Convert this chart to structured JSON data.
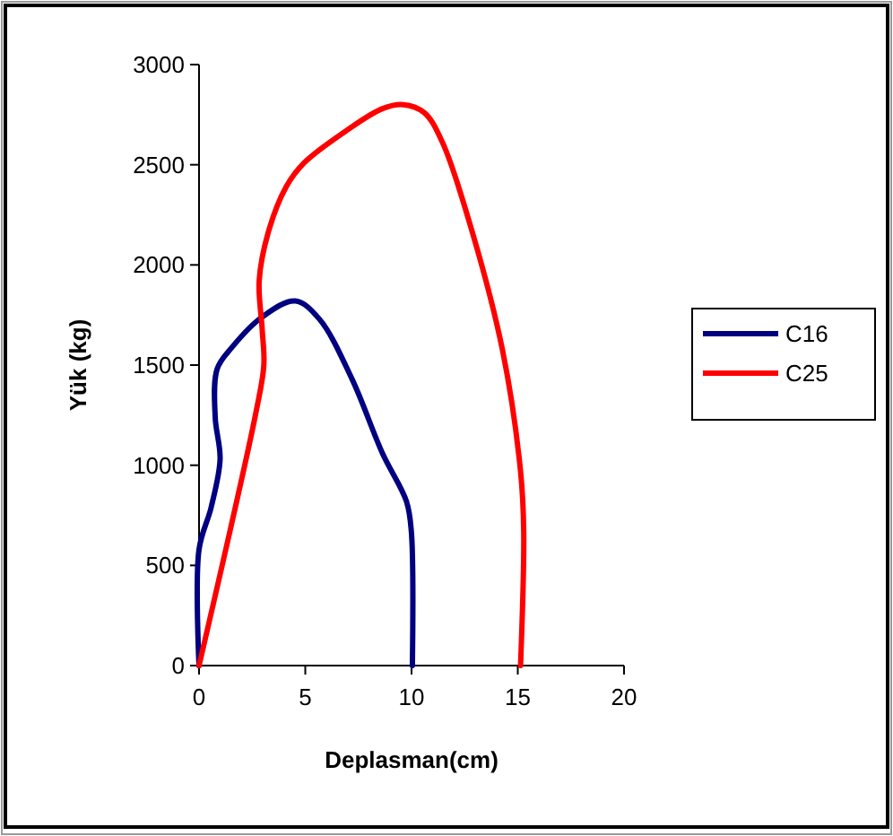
{
  "chart_data": {
    "type": "line",
    "xlabel": "Deplasman(cm)",
    "ylabel": "Yük (kg)",
    "xlim": [
      0,
      20
    ],
    "xticks": [
      0,
      5,
      10,
      15,
      20
    ],
    "ylim": [
      0,
      3000
    ],
    "yticks": [
      0,
      500,
      1000,
      1500,
      2000,
      2500,
      3000
    ],
    "grid": false,
    "legend": "right",
    "marker": "none",
    "line_style": "solid",
    "series": [
      {
        "name": "C16",
        "color": "#000080",
        "x": [
          0,
          0,
          0.57,
          0.99,
          0.76,
          0.85,
          1.56,
          2.97,
          4.53,
          5.66,
          7.2,
          8.63,
          9.76,
          9.99,
          10.04
        ],
        "values": [
          0,
          580,
          790,
          1030,
          1240,
          1480,
          1590,
          1740,
          1820,
          1730,
          1430,
          1060,
          820,
          670,
          0
        ]
      },
      {
        "name": "C25",
        "color": "#ff0000",
        "x": [
          0,
          2.69,
          3.05,
          2.97,
          2.83,
          3.25,
          4.1,
          4.95,
          6.93,
          8.63,
          9.62,
          10.6,
          11.46,
          12.87,
          14.29,
          15.13,
          15.28,
          15.13
        ],
        "values": [
          0,
          1270,
          1500,
          1680,
          1920,
          2160,
          2390,
          2510,
          2670,
          2780,
          2800,
          2760,
          2610,
          2160,
          1570,
          970,
          670,
          0
        ]
      }
    ]
  }
}
